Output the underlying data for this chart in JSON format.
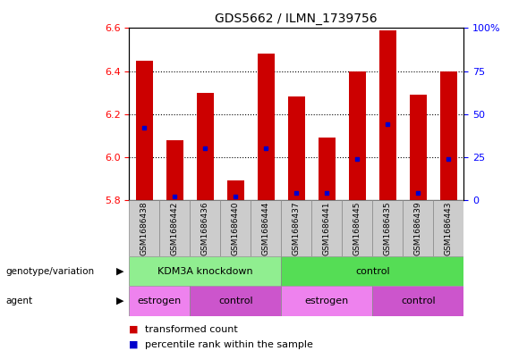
{
  "title": "GDS5662 / ILMN_1739756",
  "samples": [
    "GSM1686438",
    "GSM1686442",
    "GSM1686436",
    "GSM1686440",
    "GSM1686444",
    "GSM1686437",
    "GSM1686441",
    "GSM1686445",
    "GSM1686435",
    "GSM1686439",
    "GSM1686443"
  ],
  "red_values": [
    6.45,
    6.08,
    6.3,
    5.89,
    6.48,
    6.28,
    6.09,
    6.4,
    6.59,
    6.29,
    6.4
  ],
  "blue_percentiles": [
    42,
    2,
    30,
    2,
    30,
    4,
    4,
    24,
    44,
    4,
    24
  ],
  "ymin": 5.8,
  "ymax": 6.6,
  "percentile_min": 0,
  "percentile_max": 100,
  "yticks_left": [
    5.8,
    6.0,
    6.2,
    6.4,
    6.6
  ],
  "yticks_right": [
    0,
    25,
    50,
    75,
    100
  ],
  "ytick_labels_right": [
    "0",
    "25",
    "50",
    "75",
    "100%"
  ],
  "grid_values": [
    6.0,
    6.2,
    6.4
  ],
  "bar_color": "#cc0000",
  "dot_color": "#0000cc",
  "bar_width": 0.55,
  "genotype_variation_label": "genotype/variation",
  "agent_label": "agent",
  "genotype_groups": [
    {
      "label": "KDM3A knockdown",
      "start": 0,
      "end": 4,
      "color": "#90ee90"
    },
    {
      "label": "control",
      "start": 5,
      "end": 10,
      "color": "#55dd55"
    }
  ],
  "agent_groups": [
    {
      "label": "estrogen",
      "start": 0,
      "end": 1,
      "color": "#ee82ee"
    },
    {
      "label": "control",
      "start": 2,
      "end": 4,
      "color": "#cc55cc"
    },
    {
      "label": "estrogen",
      "start": 5,
      "end": 7,
      "color": "#ee82ee"
    },
    {
      "label": "control",
      "start": 8,
      "end": 10,
      "color": "#cc55cc"
    }
  ],
  "legend_items": [
    {
      "label": "transformed count",
      "color": "#cc0000"
    },
    {
      "label": "percentile rank within the sample",
      "color": "#0000cc"
    }
  ],
  "fig_width": 5.89,
  "fig_height": 3.93,
  "dpi": 100
}
